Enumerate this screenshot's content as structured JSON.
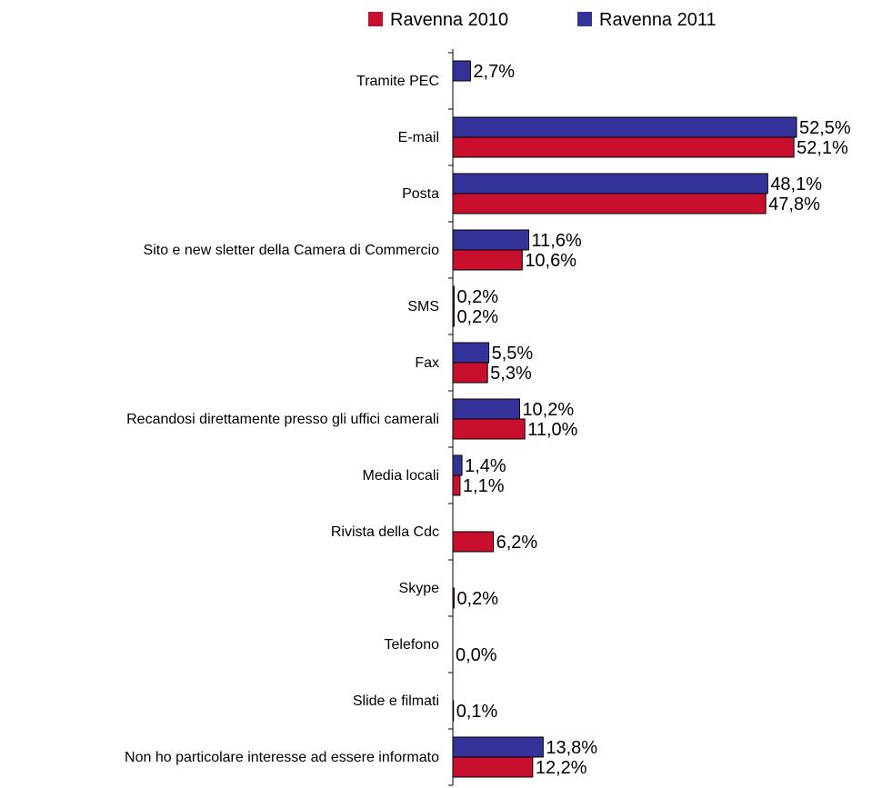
{
  "chart_data": {
    "type": "bar",
    "orientation": "horizontal",
    "legend": {
      "position": "top",
      "entries": [
        {
          "name": "Ravenna 2010",
          "color": "#c8102e"
        },
        {
          "name": "Ravenna 2011",
          "color": "#333399"
        }
      ]
    },
    "xlim": [
      0,
      52.5
    ],
    "grid": false,
    "categories": [
      "Tramite PEC",
      "E-mail",
      "Posta",
      "Sito e new sletter della Camera di Commercio",
      "SMS",
      "Fax",
      "Recandosi direttamente presso gli uffici camerali",
      "Media locali",
      "Rivista della Cdc",
      "Skype",
      "Telefono",
      "Slide e filmati",
      "Non ho particolare interesse ad essere informato"
    ],
    "series": [
      {
        "name": "Ravenna 2011",
        "color": "#333399",
        "values": [
          2.7,
          52.5,
          48.1,
          11.6,
          0.2,
          5.5,
          10.2,
          1.4,
          null,
          null,
          null,
          null,
          13.8
        ],
        "labels": [
          "2,7%",
          "52,5%",
          "48,1%",
          "11,6%",
          "0,2%",
          "5,5%",
          "10,2%",
          "1,4%",
          null,
          null,
          null,
          null,
          "13,8%"
        ]
      },
      {
        "name": "Ravenna 2010",
        "color": "#c8102e",
        "values": [
          null,
          52.1,
          47.8,
          10.6,
          0.2,
          5.3,
          11.0,
          1.1,
          6.2,
          0.2,
          0.0,
          0.1,
          12.2
        ],
        "labels": [
          null,
          "52,1%",
          "47,8%",
          "10,6%",
          "0,2%",
          "5,3%",
          "11,0%",
          "1,1%",
          "6,2%",
          "0,2%",
          "0,0%",
          "0,1%",
          "12,2%"
        ]
      }
    ]
  }
}
